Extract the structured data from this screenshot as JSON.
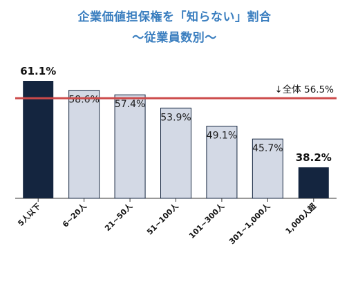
{
  "title_line1": "企業価値担保権を「知らない」割合",
  "title_line2": "〜従業員数別〜",
  "chart_data": {
    "type": "bar",
    "categories": [
      "5人以下",
      "6~20人",
      "21~50人",
      "51~100人",
      "101~300人",
      "301~1,000人",
      "1,000人超"
    ],
    "values": [
      61.1,
      58.6,
      57.4,
      53.9,
      49.1,
      45.7,
      38.2
    ],
    "value_labels": [
      "61.1%",
      "58.6%",
      "57.4%",
      "53.9%",
      "49.1%",
      "45.7%",
      "38.2%"
    ],
    "highlighted": [
      true,
      false,
      false,
      false,
      false,
      false,
      true
    ],
    "reference_line": {
      "label": "↓全体 56.5%",
      "value": 56.5,
      "color": "#cc4a4a"
    },
    "colors": {
      "highlight": "#14253f",
      "normal": "#d3d9e5",
      "title": "#3a7ebf"
    },
    "xlabel": "",
    "ylabel": "",
    "ylim": [
      30,
      62
    ],
    "grid": false,
    "legend": "none"
  }
}
